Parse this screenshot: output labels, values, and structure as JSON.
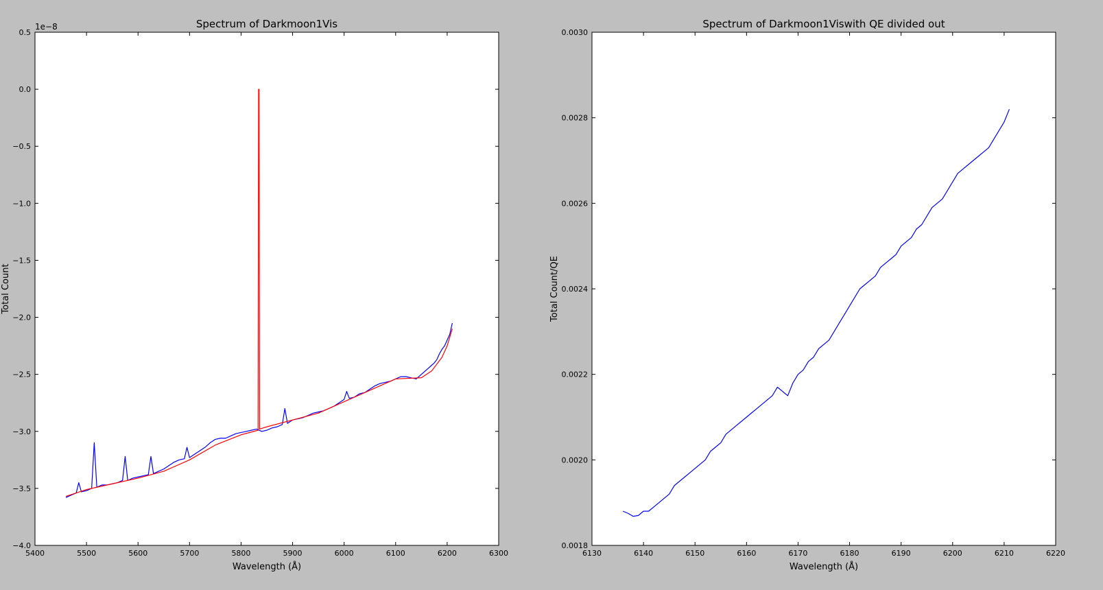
{
  "figure": {
    "background": "#bfbfbf"
  },
  "chart_data": [
    {
      "type": "line",
      "title": "Spectrum of Darkmoon1Vis",
      "xlabel": "Wavelength (Å)",
      "ylabel": "Total Count",
      "offset_text": "1e−8",
      "xlim": [
        5400,
        6300
      ],
      "ylim": [
        -4.0,
        0.5
      ],
      "y_scale_factor": 1e-08,
      "xticks": [
        5400,
        5500,
        5600,
        5700,
        5800,
        5900,
        6000,
        6100,
        6200,
        6300
      ],
      "xtick_labels": [
        "5400",
        "5500",
        "5600",
        "5700",
        "5800",
        "5900",
        "6000",
        "6100",
        "6200",
        "6300"
      ],
      "yticks": [
        -4.0,
        -3.5,
        -3.0,
        -2.5,
        -2.0,
        -1.5,
        -1.0,
        -0.5,
        0.0,
        0.5
      ],
      "ytick_labels": [
        "−4.0",
        "−3.5",
        "−3.0",
        "−2.5",
        "−2.0",
        "−1.5",
        "−1.0",
        "−0.5",
        "0.0",
        "0.5"
      ],
      "grid": false,
      "series": [
        {
          "color": "#0000ff",
          "x": [
            5460,
            5470,
            5480,
            5485,
            5490,
            5500,
            5510,
            5515,
            5520,
            5530,
            5540,
            5550,
            5560,
            5570,
            5575,
            5580,
            5590,
            5600,
            5610,
            5620,
            5625,
            5630,
            5640,
            5650,
            5660,
            5670,
            5680,
            5690,
            5695,
            5700,
            5710,
            5720,
            5730,
            5740,
            5750,
            5760,
            5770,
            5780,
            5790,
            5800,
            5810,
            5820,
            5830,
            5840,
            5850,
            5860,
            5870,
            5880,
            5885,
            5890,
            5900,
            5910,
            5920,
            5930,
            5940,
            5950,
            5960,
            5970,
            5980,
            5990,
            6000,
            6005,
            6010,
            6020,
            6030,
            6040,
            6050,
            6060,
            6070,
            6080,
            6090,
            6100,
            6110,
            6120,
            6130,
            6140,
            6150,
            6160,
            6170,
            6175,
            6180,
            6185,
            6190,
            6195,
            6200,
            6205,
            6210
          ],
          "y": [
            -3.58,
            -3.56,
            -3.54,
            -3.45,
            -3.53,
            -3.52,
            -3.5,
            -3.1,
            -3.49,
            -3.47,
            -3.47,
            -3.46,
            -3.45,
            -3.43,
            -3.22,
            -3.43,
            -3.41,
            -3.4,
            -3.39,
            -3.38,
            -3.22,
            -3.37,
            -3.35,
            -3.33,
            -3.3,
            -3.27,
            -3.25,
            -3.24,
            -3.14,
            -3.23,
            -3.2,
            -3.17,
            -3.14,
            -3.1,
            -3.07,
            -3.06,
            -3.06,
            -3.04,
            -3.02,
            -3.01,
            -3.0,
            -2.99,
            -2.98,
            -3.0,
            -2.99,
            -2.97,
            -2.96,
            -2.94,
            -2.8,
            -2.93,
            -2.9,
            -2.89,
            -2.88,
            -2.86,
            -2.84,
            -2.83,
            -2.82,
            -2.8,
            -2.78,
            -2.75,
            -2.72,
            -2.65,
            -2.71,
            -2.7,
            -2.67,
            -2.66,
            -2.63,
            -2.6,
            -2.58,
            -2.57,
            -2.56,
            -2.54,
            -2.52,
            -2.52,
            -2.53,
            -2.54,
            -2.5,
            -2.46,
            -2.42,
            -2.4,
            -2.37,
            -2.32,
            -2.28,
            -2.25,
            -2.2,
            -2.15,
            -2.05
          ]
        },
        {
          "color": "#ff0000",
          "x": [
            5460,
            5500,
            5550,
            5600,
            5650,
            5700,
            5750,
            5800,
            5833,
            5834,
            5835,
            5836,
            5850,
            5900,
            5950,
            6000,
            6050,
            6100,
            6150,
            6170,
            6190,
            6200,
            6210
          ],
          "y": [
            -3.57,
            -3.51,
            -3.46,
            -3.41,
            -3.35,
            -3.25,
            -3.12,
            -3.03,
            -2.99,
            0.0,
            0.0,
            -2.98,
            -2.96,
            -2.9,
            -2.84,
            -2.74,
            -2.64,
            -2.54,
            -2.53,
            -2.47,
            -2.35,
            -2.25,
            -2.1
          ]
        }
      ]
    },
    {
      "type": "line",
      "title": "Spectrum of Darkmoon1Viswith QE divided out",
      "xlabel": "Wavelength (Å)",
      "ylabel": "Total Count/QE",
      "xlim": [
        6130,
        6220
      ],
      "ylim": [
        0.0018,
        0.003
      ],
      "xticks": [
        6130,
        6140,
        6150,
        6160,
        6170,
        6180,
        6190,
        6200,
        6210,
        6220
      ],
      "xtick_labels": [
        "6130",
        "6140",
        "6150",
        "6160",
        "6170",
        "6180",
        "6190",
        "6200",
        "6210",
        "6220"
      ],
      "yticks": [
        0.0018,
        0.002,
        0.0022,
        0.0024,
        0.0026,
        0.0028,
        0.003
      ],
      "ytick_labels": [
        "0.0018",
        "0.0020",
        "0.0022",
        "0.0024",
        "0.0026",
        "0.0028",
        "0.0030"
      ],
      "grid": false,
      "series": [
        {
          "color": "#0000ff",
          "x": [
            6136,
            6137,
            6138,
            6139,
            6140,
            6141,
            6142,
            6143,
            6144,
            6145,
            6146,
            6147,
            6148,
            6149,
            6150,
            6151,
            6152,
            6153,
            6154,
            6155,
            6156,
            6157,
            6158,
            6159,
            6160,
            6161,
            6162,
            6163,
            6164,
            6165,
            6166,
            6167,
            6168,
            6169,
            6170,
            6171,
            6172,
            6173,
            6174,
            6175,
            6176,
            6177,
            6178,
            6179,
            6180,
            6181,
            6182,
            6183,
            6184,
            6185,
            6186,
            6187,
            6188,
            6189,
            6190,
            6191,
            6192,
            6193,
            6194,
            6195,
            6196,
            6197,
            6198,
            6199,
            6200,
            6201,
            6202,
            6203,
            6204,
            6205,
            6206,
            6207,
            6208,
            6209,
            6210,
            6211
          ],
          "y": [
            0.00188,
            0.001875,
            0.001868,
            0.00187,
            0.00188,
            0.00188,
            0.00189,
            0.0019,
            0.00191,
            0.00192,
            0.00194,
            0.00195,
            0.00196,
            0.00197,
            0.00198,
            0.00199,
            0.002,
            0.00202,
            0.00203,
            0.00204,
            0.00206,
            0.00207,
            0.00208,
            0.00209,
            0.0021,
            0.00211,
            0.00212,
            0.00213,
            0.00214,
            0.00215,
            0.00217,
            0.00216,
            0.00215,
            0.00218,
            0.0022,
            0.00221,
            0.00223,
            0.00224,
            0.00226,
            0.00227,
            0.00228,
            0.0023,
            0.00232,
            0.00234,
            0.00236,
            0.00238,
            0.0024,
            0.00241,
            0.00242,
            0.00243,
            0.00245,
            0.00246,
            0.00247,
            0.00248,
            0.0025,
            0.00251,
            0.00252,
            0.00254,
            0.00255,
            0.00257,
            0.00259,
            0.0026,
            0.00261,
            0.00263,
            0.00265,
            0.00267,
            0.00268,
            0.00269,
            0.0027,
            0.00271,
            0.00272,
            0.00273,
            0.00275,
            0.00277,
            0.00279,
            0.00282
          ]
        }
      ]
    }
  ]
}
